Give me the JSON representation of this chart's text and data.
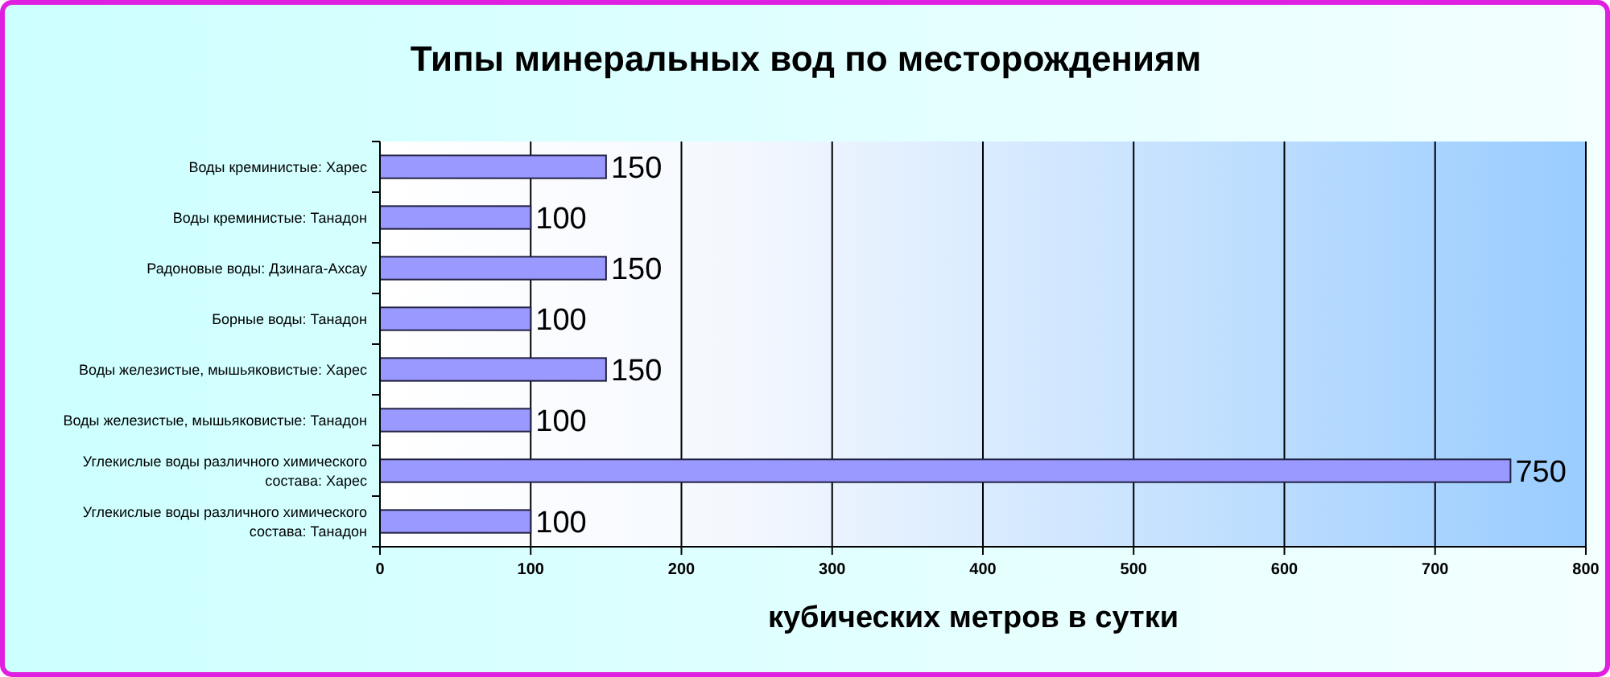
{
  "chart_data": {
    "type": "bar",
    "orientation": "horizontal",
    "title": "Типы минеральных вод по месторождениям",
    "xlabel": "кубических метров в сутки",
    "categories": [
      "Воды креминистые: Харес",
      "Воды креминистые: Танадон",
      "Радоновые воды: Дзинага-Ахсау",
      "Борные воды: Танадон",
      "Воды железистые, мышьяковистые: Харес",
      "Воды железистые, мышьяковистые: Танадон",
      "Углекислые воды различного химического состава: Харес",
      "Углекислые воды различного химического состава: Танадон"
    ],
    "values": [
      150,
      100,
      150,
      100,
      150,
      100,
      750,
      100
    ],
    "color": "#9999ff",
    "xlim": [
      0,
      800
    ],
    "xticks": [
      0,
      100,
      200,
      300,
      400,
      500,
      600,
      700,
      800
    ],
    "grid": "x",
    "data_labels": true
  }
}
